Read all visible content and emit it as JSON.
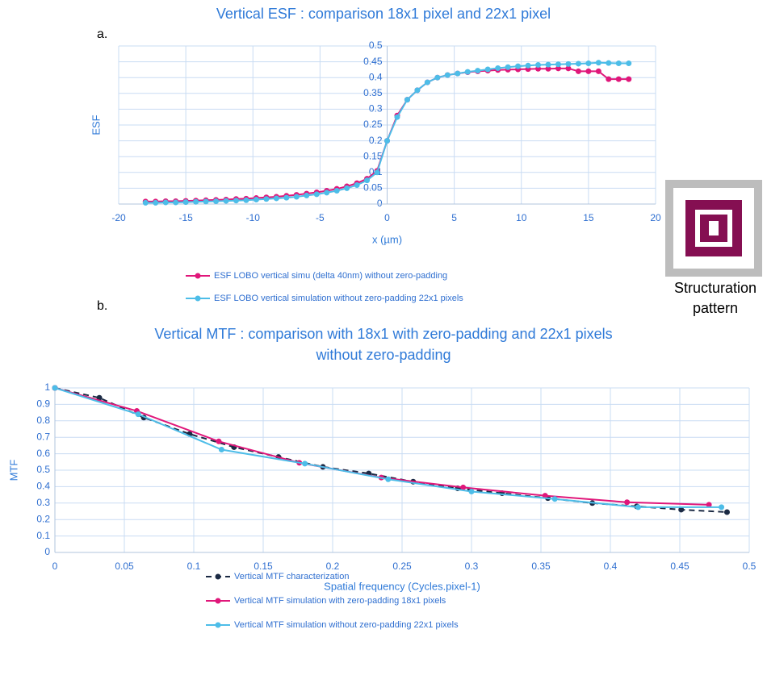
{
  "labels": {
    "a": "a.",
    "b": "b.",
    "caption": [
      "Structuration",
      "pattern"
    ]
  },
  "chart_data": [
    {
      "type": "line",
      "title": "Vertical ESF : comparison 18x1 pixel and 22x1 pixel",
      "x_label": "x (µm)",
      "y_label": "ESF",
      "xlim": [
        -20,
        20
      ],
      "xticks": [
        -20,
        -15,
        -10,
        -5,
        0,
        5,
        10,
        15,
        20
      ],
      "ylim": [
        0,
        0.5
      ],
      "yticks": [
        0,
        0.05,
        0.1,
        0.15,
        0.2,
        0.25,
        0.3,
        0.35,
        0.4,
        0.45,
        0.5
      ],
      "grid": true,
      "x": [
        -18,
        -17.25,
        -16.5,
        -15.75,
        -15,
        -14.25,
        -13.5,
        -12.75,
        -12,
        -11.25,
        -10.5,
        -9.75,
        -9,
        -8.25,
        -7.5,
        -6.75,
        -6,
        -5.25,
        -4.5,
        -3.75,
        -3,
        -2.25,
        -1.5,
        -0.75,
        0,
        0.75,
        1.5,
        2.25,
        3,
        3.75,
        4.5,
        5.25,
        6,
        6.75,
        7.5,
        8.25,
        9,
        9.75,
        10.5,
        11.25,
        12,
        12.75,
        13.5,
        14.25,
        15,
        15.75,
        16.5,
        17.25,
        18
      ],
      "series": [
        {
          "name": "ESF LOBO  vertical simu (delta 40nm) without zero-padding",
          "color": "#e0177a",
          "dash": false,
          "values": [
            0.008,
            0.008,
            0.009,
            0.009,
            0.01,
            0.011,
            0.012,
            0.013,
            0.014,
            0.016,
            0.017,
            0.019,
            0.021,
            0.023,
            0.026,
            0.029,
            0.033,
            0.037,
            0.042,
            0.048,
            0.056,
            0.066,
            0.08,
            0.105,
            0.2,
            0.28,
            0.33,
            0.36,
            0.385,
            0.4,
            0.408,
            0.413,
            0.417,
            0.42,
            0.422,
            0.424,
            0.425,
            0.426,
            0.427,
            0.428,
            0.428,
            0.429,
            0.429,
            0.42,
            0.42,
            0.42,
            0.395,
            0.395,
            0.395
          ]
        },
        {
          "name": "ESF LOBO  vertical simulation without zero-padding 22x1 pixels",
          "color": "#4dbde8",
          "dash": false,
          "values": [
            0.004,
            0.004,
            0.005,
            0.005,
            0.006,
            0.007,
            0.008,
            0.009,
            0.01,
            0.011,
            0.012,
            0.014,
            0.016,
            0.018,
            0.02,
            0.023,
            0.027,
            0.031,
            0.036,
            0.042,
            0.05,
            0.06,
            0.075,
            0.1,
            0.2,
            0.275,
            0.33,
            0.36,
            0.385,
            0.4,
            0.408,
            0.413,
            0.418,
            0.422,
            0.426,
            0.43,
            0.433,
            0.436,
            0.438,
            0.44,
            0.441,
            0.442,
            0.443,
            0.444,
            0.445,
            0.447,
            0.446,
            0.445,
            0.445
          ]
        }
      ]
    },
    {
      "type": "line",
      "title": [
        "Vertical MTF : comparison with 18x1 with zero-padding and 22x1 pixels",
        "without zero-padding"
      ],
      "x_label": "Spatial frequency (Cycles.pixel-1)",
      "y_label": "MTF",
      "xlim": [
        0,
        0.5
      ],
      "xticks": [
        0,
        0.05,
        0.1,
        0.15,
        0.2,
        0.25,
        0.3,
        0.35,
        0.4,
        0.45,
        0.5
      ],
      "ylim": [
        0,
        1
      ],
      "yticks": [
        0,
        0.1,
        0.2,
        0.3,
        0.4,
        0.5,
        0.6,
        0.7,
        0.8,
        0.9,
        1
      ],
      "grid": true,
      "series": [
        {
          "name": "Vertical MTF characterization",
          "color": "#1b2a44",
          "dash": true,
          "x": [
            0,
            0.032,
            0.064,
            0.097,
            0.129,
            0.161,
            0.193,
            0.226,
            0.258,
            0.29,
            0.322,
            0.355,
            0.387,
            0.419,
            0.451,
            0.484
          ],
          "values": [
            1,
            0.94,
            0.82,
            0.72,
            0.64,
            0.58,
            0.52,
            0.48,
            0.43,
            0.39,
            0.36,
            0.33,
            0.3,
            0.28,
            0.26,
            0.245
          ]
        },
        {
          "name": "Vertical MTF simulation with zero-padding 18x1 pixels",
          "color": "#e0177a",
          "dash": false,
          "x": [
            0,
            0.059,
            0.118,
            0.176,
            0.235,
            0.294,
            0.353,
            0.412,
            0.471
          ],
          "values": [
            1,
            0.86,
            0.675,
            0.545,
            0.455,
            0.395,
            0.345,
            0.305,
            0.29
          ]
        },
        {
          "name": "Vertical MTF simulation without zero-padding 22x1 pixels",
          "color": "#4dbde8",
          "dash": false,
          "x": [
            0,
            0.06,
            0.12,
            0.18,
            0.24,
            0.3,
            0.36,
            0.42,
            0.48
          ],
          "values": [
            1,
            0.84,
            0.625,
            0.54,
            0.445,
            0.37,
            0.325,
            0.275,
            0.275
          ]
        }
      ]
    }
  ]
}
